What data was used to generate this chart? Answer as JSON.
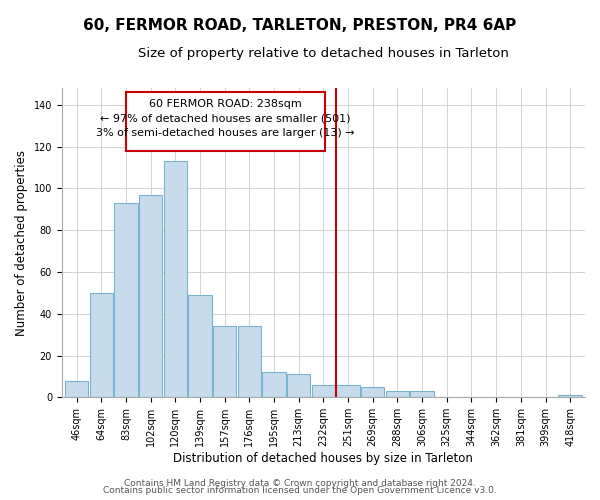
{
  "title": "60, FERMOR ROAD, TARLETON, PRESTON, PR4 6AP",
  "subtitle": "Size of property relative to detached houses in Tarleton",
  "xlabel": "Distribution of detached houses by size in Tarleton",
  "ylabel": "Number of detached properties",
  "categories": [
    "46sqm",
    "64sqm",
    "83sqm",
    "102sqm",
    "120sqm",
    "139sqm",
    "157sqm",
    "176sqm",
    "195sqm",
    "213sqm",
    "232sqm",
    "251sqm",
    "269sqm",
    "288sqm",
    "306sqm",
    "325sqm",
    "344sqm",
    "362sqm",
    "381sqm",
    "399sqm",
    "418sqm"
  ],
  "values": [
    8,
    50,
    93,
    97,
    113,
    49,
    34,
    34,
    12,
    11,
    6,
    6,
    5,
    3,
    3,
    0,
    0,
    0,
    0,
    0,
    1
  ],
  "bar_color": "#c6dcec",
  "bar_edge_color": "#7ab3d0",
  "vline_color": "#cc0000",
  "annotation_title": "60 FERMOR ROAD: 238sqm",
  "annotation_line1": "← 97% of detached houses are smaller (501)",
  "annotation_line2": "3% of semi-detached houses are larger (13) →",
  "ylim": [
    0,
    148
  ],
  "yticks": [
    0,
    20,
    40,
    60,
    80,
    100,
    120,
    140
  ],
  "footer1": "Contains HM Land Registry data © Crown copyright and database right 2024.",
  "footer2": "Contains public sector information licensed under the Open Government Licence v3.0.",
  "title_fontsize": 11,
  "subtitle_fontsize": 9.5,
  "axis_label_fontsize": 8.5,
  "tick_fontsize": 7,
  "annotation_fontsize": 8,
  "footer_fontsize": 6.5
}
